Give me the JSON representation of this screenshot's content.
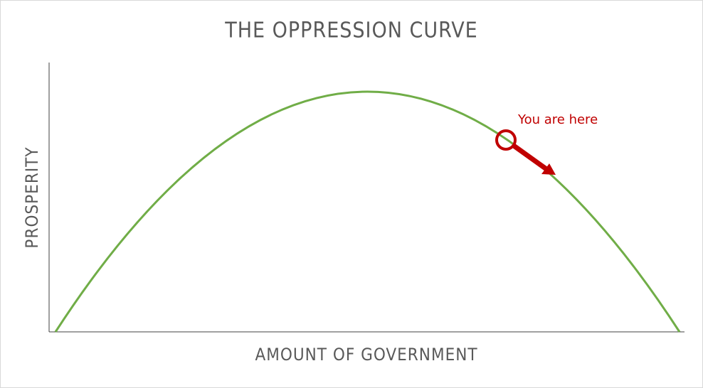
{
  "chart_data": {
    "type": "line",
    "title": "THE OPPRESSION CURVE",
    "x_label": "AMOUNT OF GOVERNMENT",
    "y_label": "PROSPERITY",
    "annotation": "You are here",
    "color": "#70ad47",
    "annotation_color": "#c00000"
  }
}
